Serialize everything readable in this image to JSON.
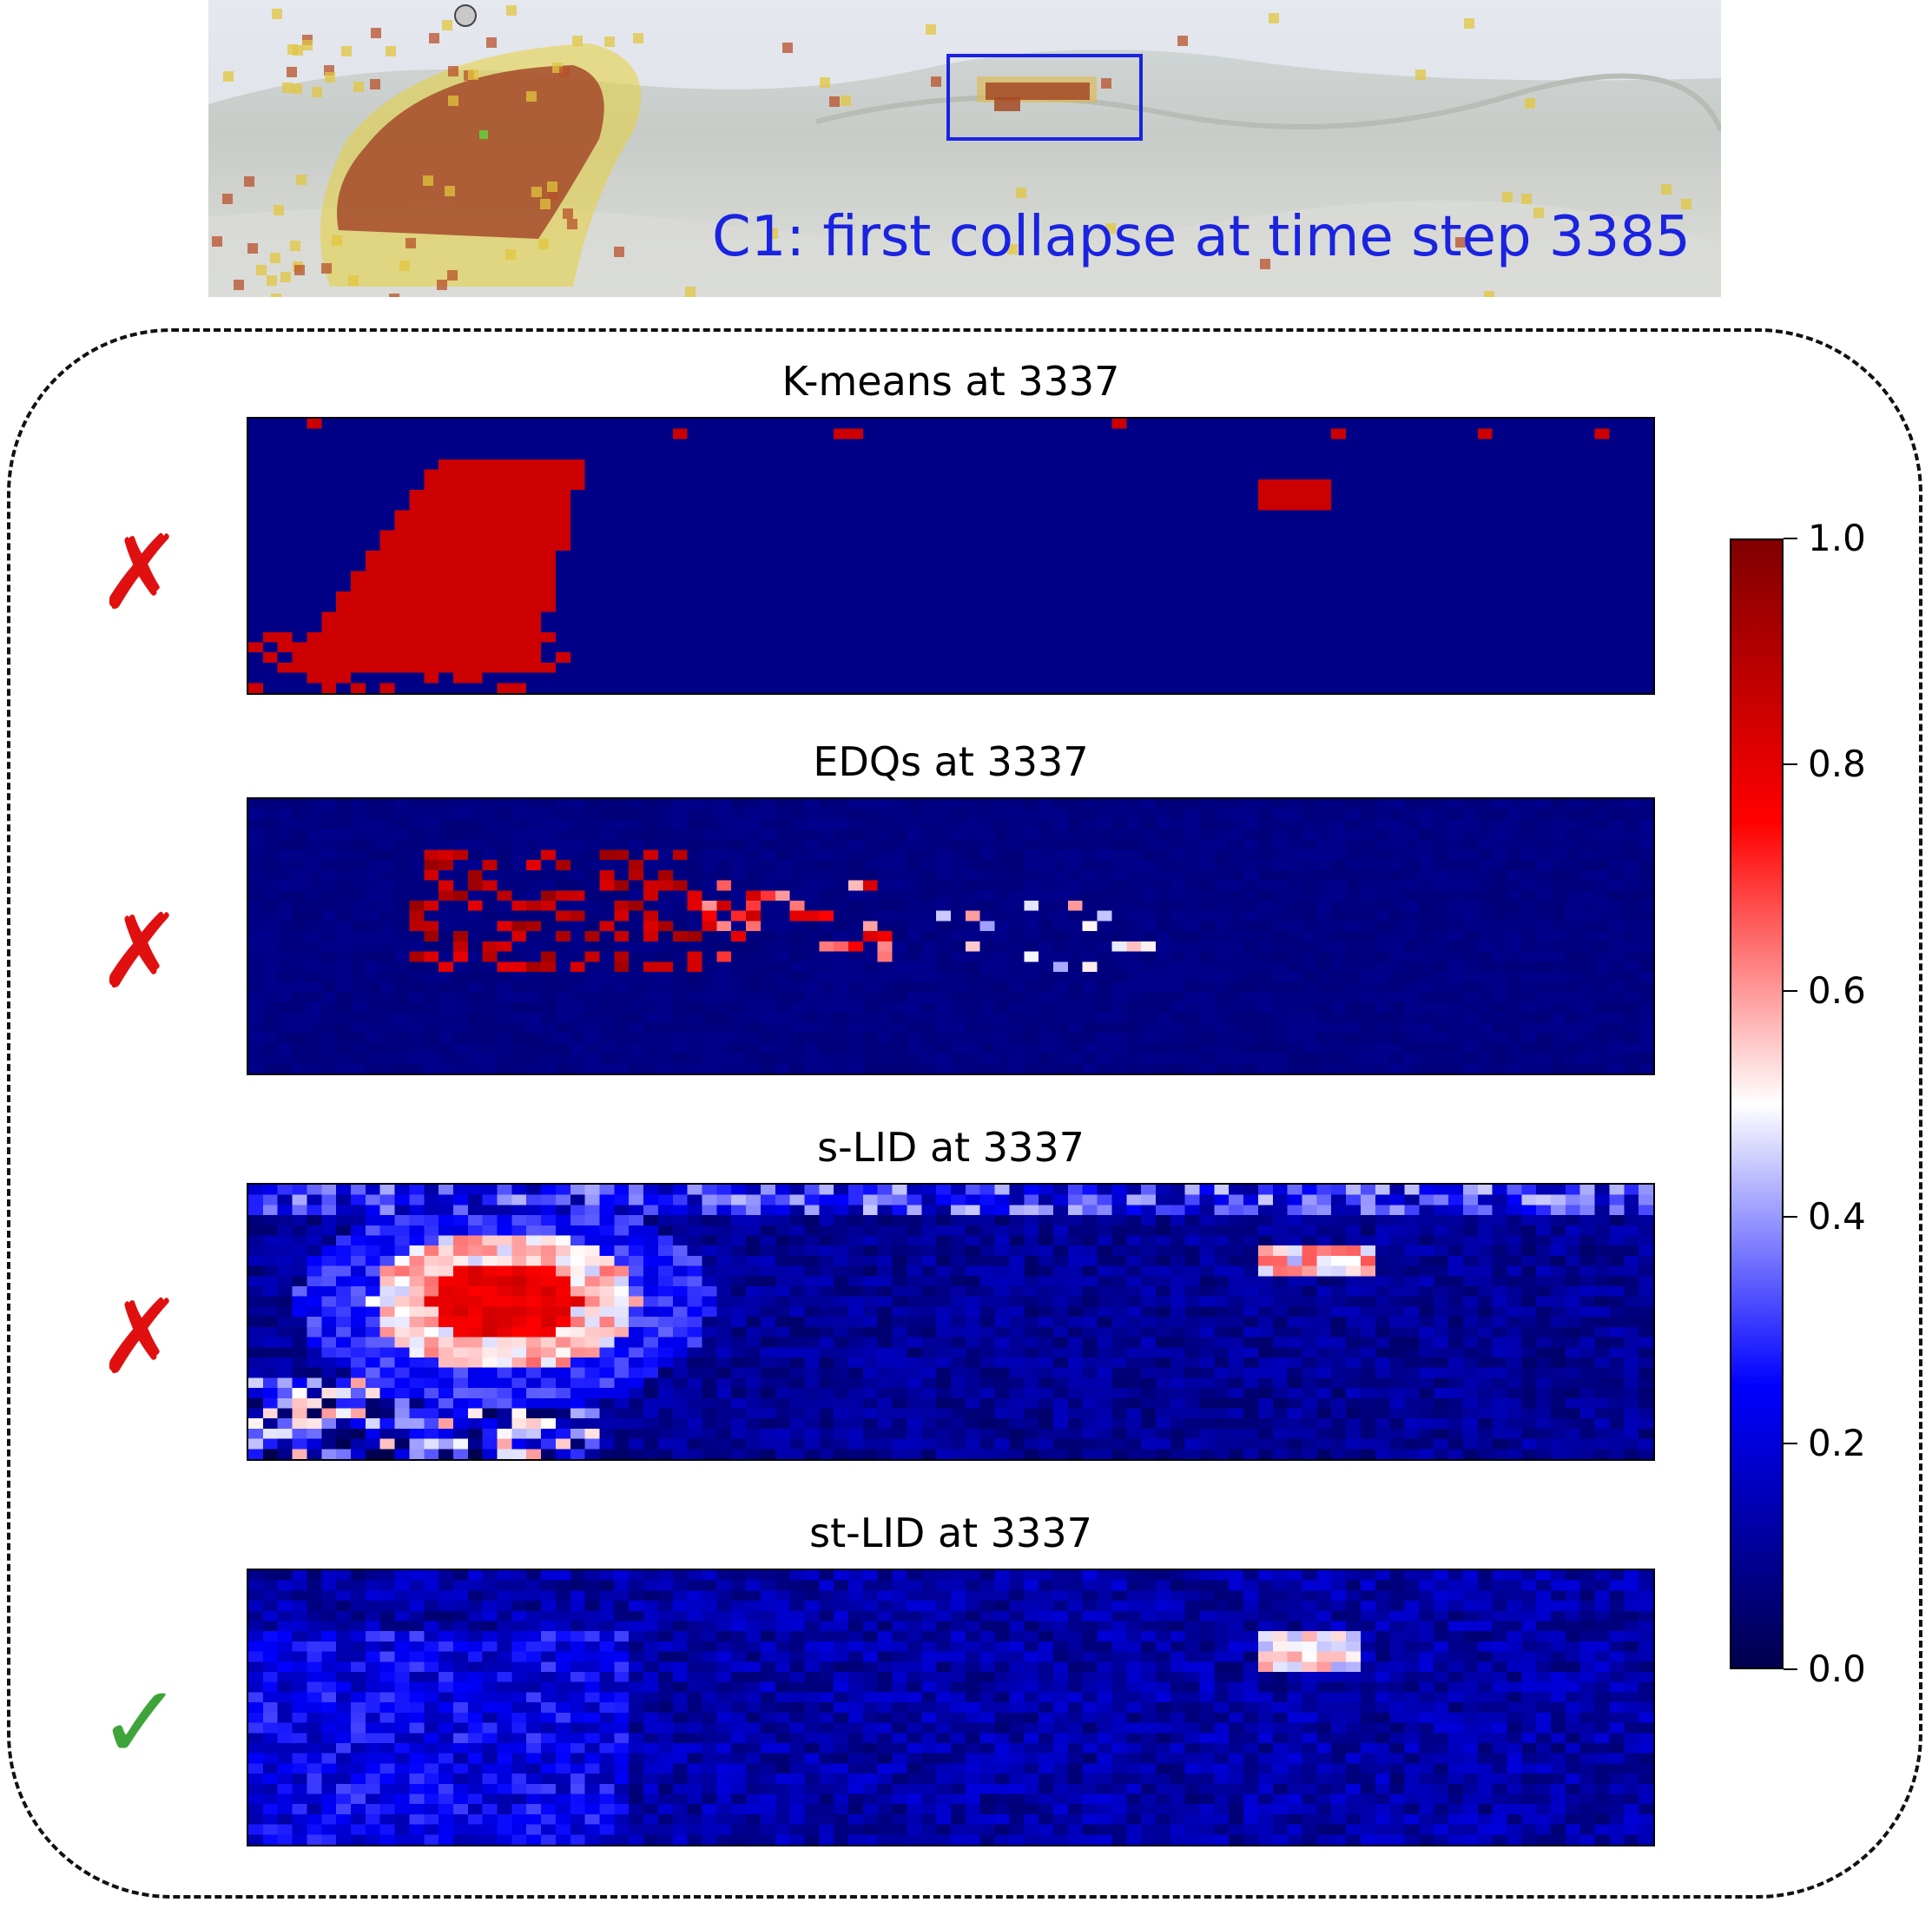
{
  "photo": {
    "caption": "C1: first collapse at time step 3385",
    "highlight_box_color": "#1a23e0"
  },
  "chart_data": [
    {
      "type": "heatmap",
      "title": "K-means at 3337",
      "verdict": "✗",
      "verdict_color": "#e01010",
      "colormap": "seismic",
      "vmin": 0.0,
      "vmax": 1.0
    },
    {
      "type": "heatmap",
      "title": "EDQs at 3337",
      "verdict": "✗",
      "verdict_color": "#e01010",
      "colormap": "seismic",
      "vmin": 0.0,
      "vmax": 1.0
    },
    {
      "type": "heatmap",
      "title": "s-LID at 3337",
      "verdict": "✗",
      "verdict_color": "#e01010",
      "colormap": "seismic",
      "vmin": 0.0,
      "vmax": 1.0
    },
    {
      "type": "heatmap",
      "title": "st-LID at 3337",
      "verdict": "✓",
      "verdict_color": "#3ea43a",
      "colormap": "seismic",
      "vmin": 0.0,
      "vmax": 1.0
    }
  ],
  "colorbar": {
    "ticks": [
      "1.0",
      "0.8",
      "0.6",
      "0.4",
      "0.2",
      "0.0"
    ],
    "range": [
      0.0,
      1.0
    ]
  }
}
